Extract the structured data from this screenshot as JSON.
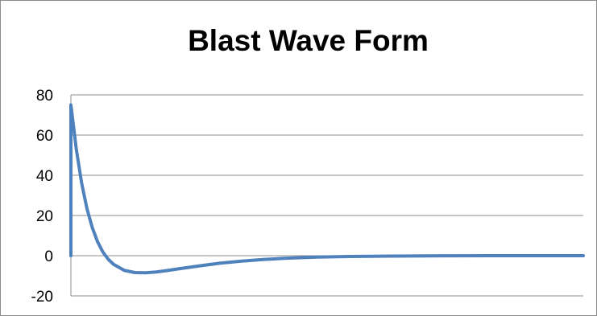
{
  "chart_data": {
    "type": "line",
    "title": "Blast Wave Form",
    "xlabel": "",
    "ylabel": "",
    "ylim": [
      -20,
      80
    ],
    "yticks": [
      80,
      60,
      40,
      20,
      0,
      -20
    ],
    "grid": true,
    "legend": "none",
    "series": [
      {
        "color": "#4f81bd",
        "points": [
          [
            0,
            0
          ],
          [
            0,
            75
          ],
          [
            0.05,
            53.2
          ],
          [
            0.1,
            36.3
          ],
          [
            0.15,
            23.5
          ],
          [
            0.2,
            14
          ],
          [
            0.25,
            6.9
          ],
          [
            0.3,
            1.8
          ],
          [
            0.35,
            -1.8
          ],
          [
            0.4,
            -4.3
          ],
          [
            0.5,
            -7.3
          ],
          [
            0.6,
            -8.4
          ],
          [
            0.7,
            -8.5
          ],
          [
            0.8,
            -8.1
          ],
          [
            0.9,
            -7.4
          ],
          [
            1.0,
            -6.6
          ],
          [
            1.2,
            -5.1
          ],
          [
            1.4,
            -3.7
          ],
          [
            1.6,
            -2.7
          ],
          [
            1.8,
            -1.9
          ],
          [
            2.0,
            -1.3
          ],
          [
            2.3,
            -0.7
          ],
          [
            2.6,
            -0.4
          ],
          [
            3.0,
            -0.2
          ],
          [
            3.5,
            -0.05
          ],
          [
            4.0,
            0
          ],
          [
            4.8,
            0
          ]
        ]
      }
    ]
  }
}
